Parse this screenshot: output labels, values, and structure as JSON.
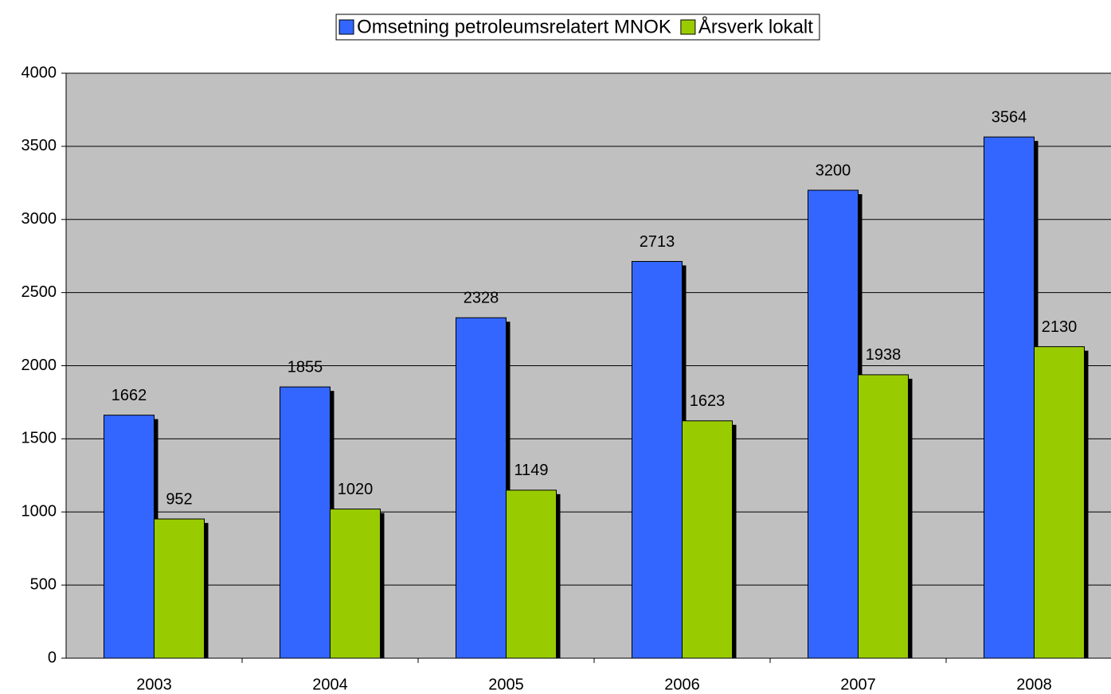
{
  "chart_data": {
    "type": "bar",
    "categories": [
      "2003",
      "2004",
      "2005",
      "2006",
      "2007",
      "2008"
    ],
    "series": [
      {
        "name": "Omsetning petroleumsrelatert MNOK",
        "color": "#3366ff",
        "values": [
          1662,
          1855,
          2328,
          2713,
          3200,
          3564
        ]
      },
      {
        "name": "Årsverk lokalt",
        "color": "#99cc00",
        "values": [
          952,
          1020,
          1149,
          1623,
          1938,
          2130
        ]
      }
    ],
    "ylim": [
      0,
      4000
    ],
    "yticks": [
      0,
      500,
      1000,
      1500,
      2000,
      2500,
      3000,
      3500,
      4000
    ],
    "grid": true,
    "legend": "top",
    "plot_background": "#c0c0c0"
  }
}
